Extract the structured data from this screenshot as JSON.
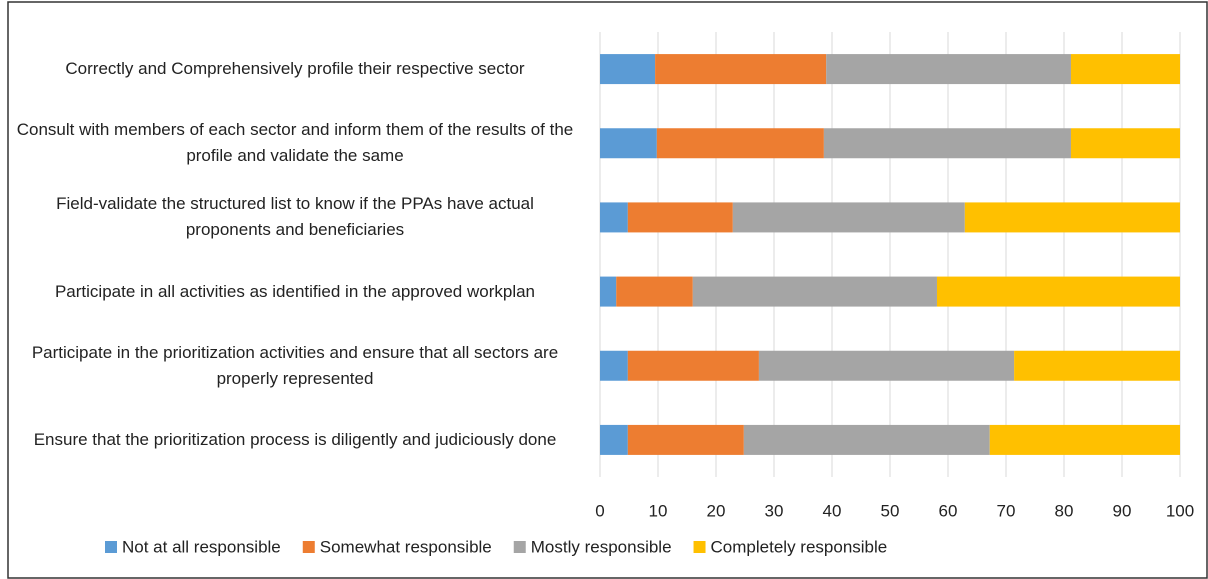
{
  "chart_data": {
    "type": "stacked_barh",
    "categories": [
      "Correctly and Comprehensively profile their respective sector",
      "Consult with members of each sector and inform them of the results of the profile  and validate the same",
      "Field-validate the structured list to know if the PPAs have actual proponents and beneficiaries",
      "Participate in all activities as identified in the approved workplan",
      "Participate in the prioritization activities and ensure that all sectors are properly represented",
      "Ensure that the prioritization process is diligently and judiciously done"
    ],
    "series": [
      {
        "name": "Not at all responsible",
        "color": "#5b9bd5",
        "values": [
          9.5,
          9.8,
          4.8,
          2.8,
          4.8,
          4.8
        ]
      },
      {
        "name": "Somewhat responsible",
        "color": "#ed7d31",
        "values": [
          29.5,
          28.8,
          18.1,
          13.2,
          22.6,
          20
        ]
      },
      {
        "name": "Mostly responsible",
        "color": "#a5a5a5",
        "values": [
          42.2,
          42.6,
          40,
          42.1,
          44,
          42.4
        ]
      },
      {
        "name": "Completely responsible",
        "color": "#ffc000",
        "values": [
          18.8,
          18.8,
          37.1,
          41.9,
          28.6,
          32.8
        ]
      }
    ],
    "xlim": [
      0,
      100
    ],
    "xticks": [
      0,
      10,
      20,
      30,
      40,
      50,
      60,
      70,
      80,
      90,
      100
    ],
    "grid": true
  }
}
